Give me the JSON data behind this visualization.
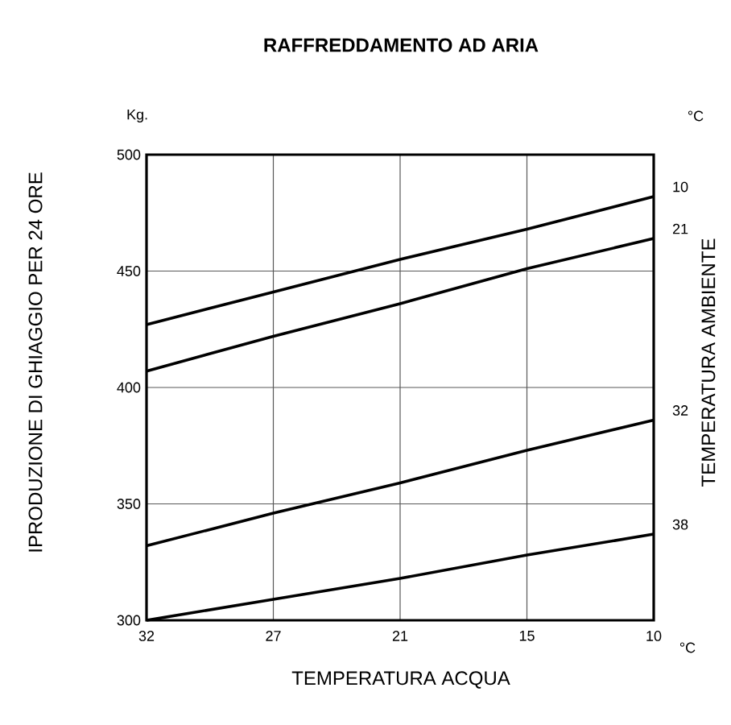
{
  "chart_data": {
    "type": "line",
    "title": "RAFFREDDAMENTO AD ARIA",
    "xlabel": "TEMPERATURA ACQUA",
    "ylabel": "IPRODUZIONE DI GHIAGGIO PER 24 ORE",
    "y2label": "TEMPERATURA AMBIENTE",
    "annotations": [
      "Kg.",
      "°C",
      "°C"
    ],
    "categories": [
      "32",
      "27",
      "21",
      "15",
      "10"
    ],
    "ylim": [
      300,
      500
    ],
    "yticks": [
      300,
      350,
      400,
      450,
      500
    ],
    "grid": true,
    "legend": false,
    "marker": "none",
    "line_style": "solid",
    "series": [
      {
        "name": "10",
        "color": "#000000",
        "values": [
          427,
          441,
          455,
          468,
          482
        ]
      },
      {
        "name": "21",
        "color": "#000000",
        "values": [
          407,
          422,
          436,
          451,
          464
        ]
      },
      {
        "name": "32",
        "color": "#000000",
        "values": [
          332,
          346,
          359,
          373,
          386
        ]
      },
      {
        "name": "38",
        "color": "#000000",
        "values": [
          300,
          309,
          318,
          328,
          337
        ]
      }
    ]
  }
}
